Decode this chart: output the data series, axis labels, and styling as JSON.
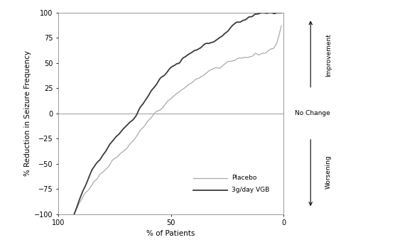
{
  "xlabel": "% of Patients",
  "ylabel": "% Reduction in Seizure Frequency",
  "xlim": [
    100,
    0
  ],
  "ylim": [
    -100,
    100
  ],
  "yticks": [
    -100,
    -75,
    -50,
    -25,
    0,
    25,
    50,
    75,
    100
  ],
  "xticks": [
    100,
    50,
    0
  ],
  "placebo_color": "#aaaaaa",
  "vigabatrin_color": "#3a3a3a",
  "hline_color": "#999999",
  "annotation_improvement": "Improvement",
  "annotation_no_change": "No Change",
  "annotation_worsening": "Worsening",
  "legend_labels": [
    "Placebo",
    "3g/day VGB"
  ],
  "background_color": "#ffffff",
  "placebo_x": [
    93,
    91,
    89,
    87,
    85,
    83,
    81,
    79,
    77,
    75,
    73,
    71,
    69,
    67,
    65,
    63,
    61,
    59,
    57,
    55,
    53,
    51,
    49,
    47,
    45,
    43,
    41,
    39,
    37,
    35,
    33,
    31,
    29,
    27,
    25,
    23,
    21,
    19,
    17,
    15,
    13,
    11,
    9,
    7,
    5,
    3,
    1
  ],
  "placebo_y": [
    -100,
    -90,
    -82,
    -76,
    -70,
    -65,
    -60,
    -55,
    -50,
    -45,
    -42,
    -38,
    -33,
    -28,
    -22,
    -15,
    -8,
    -3,
    0,
    3,
    8,
    13,
    17,
    21,
    24,
    27,
    30,
    33,
    36,
    39,
    42,
    44,
    46,
    48,
    50,
    52,
    54,
    55,
    56,
    57,
    58,
    59,
    60,
    62,
    65,
    70,
    85
  ],
  "vgb_x": [
    93,
    91,
    89,
    87,
    85,
    83,
    81,
    79,
    77,
    75,
    73,
    71,
    69,
    67,
    65,
    63,
    61,
    59,
    57,
    55,
    53,
    51,
    49,
    47,
    45,
    43,
    41,
    39,
    37,
    35,
    33,
    31,
    29,
    27,
    25,
    23,
    21,
    19,
    17,
    15,
    13,
    11,
    9,
    7,
    5,
    3,
    1
  ],
  "vgb_y": [
    -100,
    -88,
    -75,
    -65,
    -56,
    -50,
    -43,
    -37,
    -30,
    -25,
    -20,
    -15,
    -10,
    -5,
    0,
    8,
    15,
    22,
    28,
    33,
    37,
    42,
    46,
    50,
    53,
    57,
    60,
    63,
    65,
    68,
    70,
    72,
    75,
    78,
    82,
    86,
    89,
    92,
    94,
    96,
    98,
    99,
    100,
    100,
    100,
    100,
    100
  ]
}
